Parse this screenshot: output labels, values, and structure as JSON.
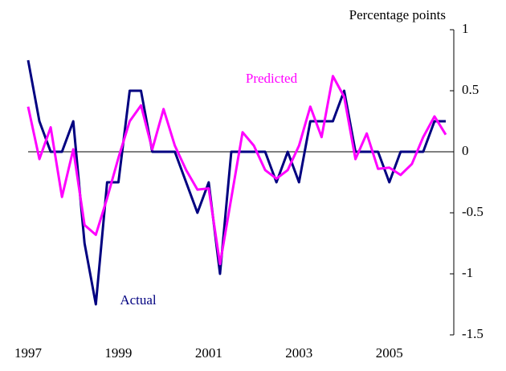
{
  "chart_data": {
    "type": "line",
    "y_axis_label": "Percentage points",
    "annotations": [
      "Predicted",
      "Actual"
    ],
    "x": [
      1997,
      1997.25,
      1997.5,
      1997.75,
      1998,
      1998.25,
      1998.5,
      1998.75,
      1999,
      1999.25,
      1999.5,
      1999.75,
      2000,
      2000.25,
      2000.5,
      2000.75,
      2001,
      2001.25,
      2001.5,
      2001.75,
      2002,
      2002.25,
      2002.5,
      2002.75,
      2003,
      2003.25,
      2003.5,
      2003.75,
      2004,
      2004.25,
      2004.5,
      2004.75,
      2005,
      2005.25,
      2005.5,
      2005.75,
      2006,
      2006.25
    ],
    "series": [
      {
        "name": "Actual",
        "color": "#000080",
        "values": [
          0.75,
          0.25,
          0,
          0,
          0.25,
          -0.75,
          -1.25,
          -0.25,
          -0.25,
          0.5,
          0.5,
          0,
          0,
          0,
          -0.25,
          -0.5,
          -0.25,
          -1,
          0,
          0,
          0,
          0,
          -0.25,
          0,
          -0.25,
          0.25,
          0.25,
          0.25,
          0.5,
          0,
          0,
          0,
          -0.25,
          0,
          0,
          0,
          0.25,
          0.25
        ]
      },
      {
        "name": "Predicted",
        "color": "#ff00ff",
        "values": [
          0.37,
          -0.06,
          0.2,
          -0.37,
          0.02,
          -0.6,
          -0.68,
          -0.38,
          -0.05,
          0.25,
          0.38,
          0.02,
          0.35,
          0.05,
          -0.15,
          -0.31,
          -0.3,
          -0.92,
          -0.38,
          0.16,
          0.05,
          -0.15,
          -0.22,
          -0.15,
          0.05,
          0.37,
          0.12,
          0.62,
          0.45,
          -0.06,
          0.15,
          -0.14,
          -0.13,
          -0.19,
          -0.1,
          0.12,
          0.29,
          0.14
        ]
      }
    ],
    "xlim": [
      1997,
      2006.25
    ],
    "xticks": [
      1997,
      1999,
      2001,
      2003,
      2005
    ],
    "ylim": [
      -1.5,
      1
    ],
    "yticks": [
      -1.5,
      -1,
      -0.5,
      0,
      0.5,
      1
    ]
  }
}
